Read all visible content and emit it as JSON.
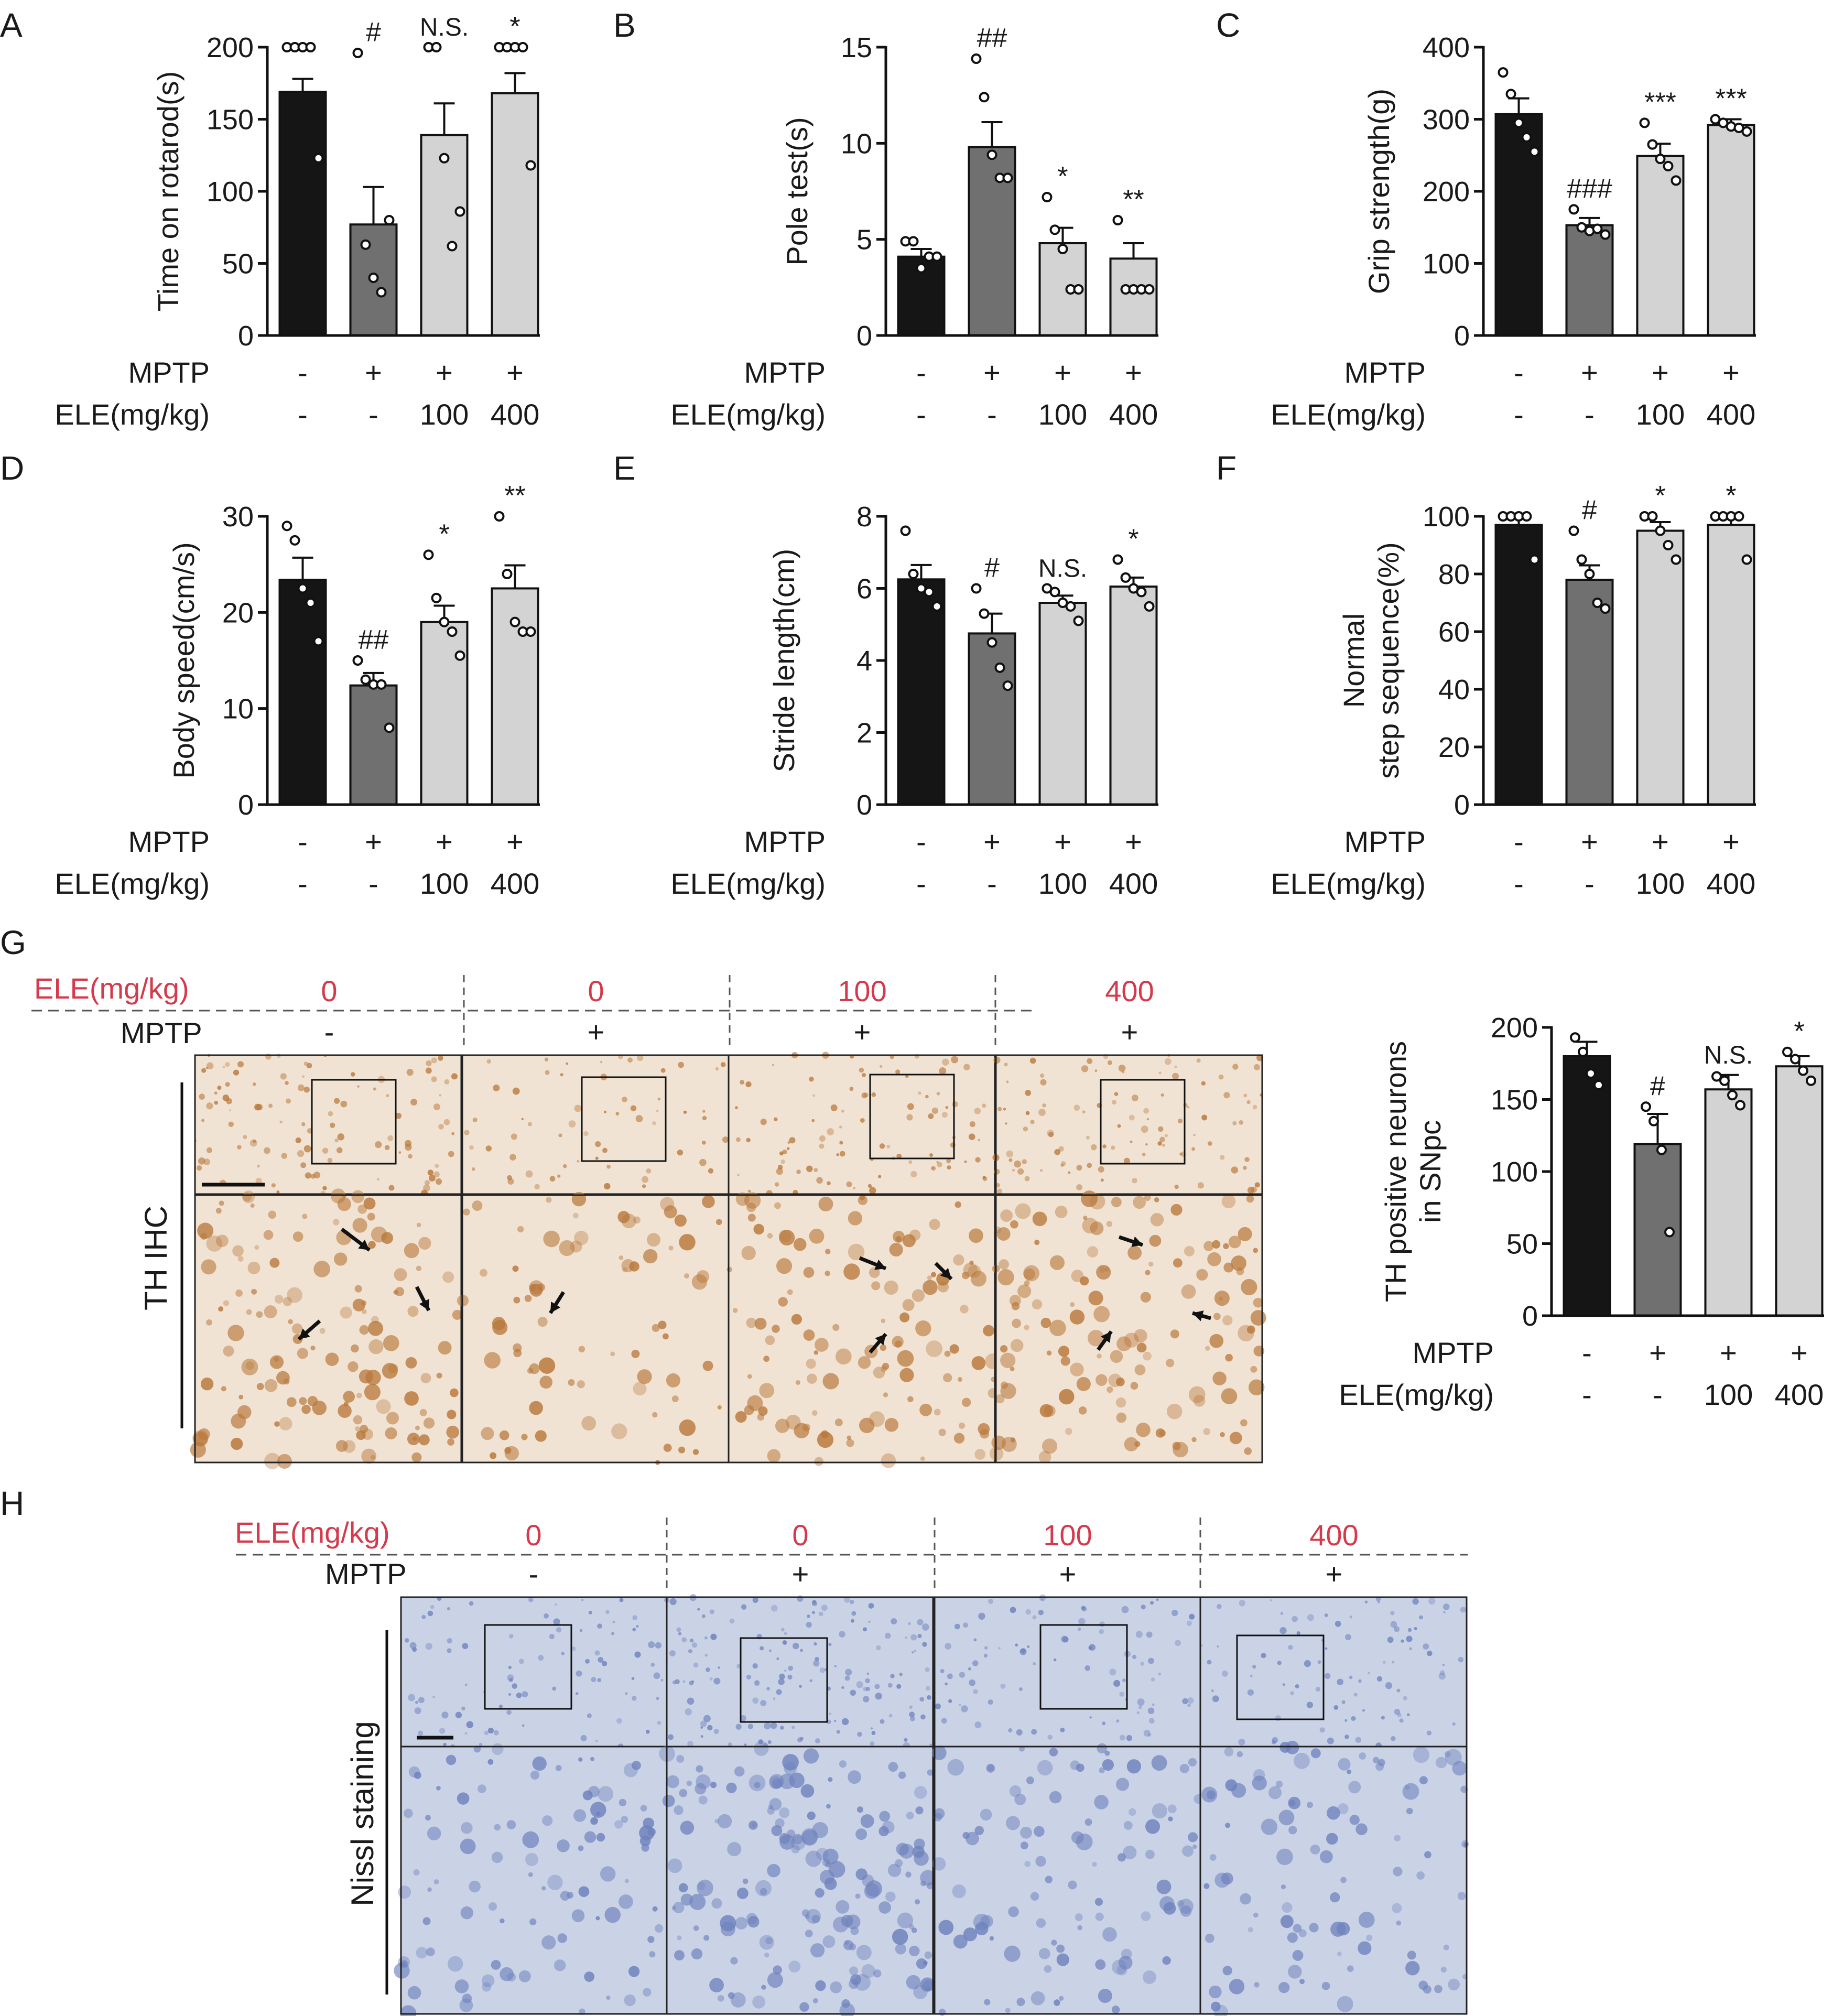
{
  "colors": {
    "control": "#151515",
    "mptp": "#707070",
    "ele100": "#d3d3d3",
    "ele400": "#d3d3d3",
    "treatment_label": "#d43a4b",
    "ihc_tissue": "#f0e3d4",
    "ihc_stain": "#b9783b",
    "nissl_tissue": "#cad3e6",
    "nissl_stain": "#6f82bd"
  },
  "row_labels": {
    "mptp": "MPTP",
    "ele": "ELE(mg/kg)"
  },
  "groups": {
    "mptp": [
      "-",
      "+",
      "+",
      "+"
    ],
    "ele": [
      "-",
      "-",
      "100",
      "400"
    ]
  },
  "chart_data": [
    {
      "panel": "A",
      "type": "bar",
      "ylabel": "Time on rotarod(s)",
      "ylim": [
        0,
        200
      ],
      "yticks": [
        0,
        50,
        100,
        150,
        200
      ],
      "values": [
        169,
        77,
        139,
        168
      ],
      "errors": [
        9,
        26,
        22,
        14
      ],
      "points": [
        [
          200,
          200,
          200,
          200,
          123
        ],
        [
          196,
          63,
          40,
          30,
          80
        ],
        [
          200,
          200,
          123,
          62,
          86
        ],
        [
          200,
          200,
          200,
          200,
          118
        ]
      ],
      "sig": [
        "",
        "#",
        "N.S.",
        "*"
      ]
    },
    {
      "panel": "B",
      "type": "bar",
      "ylabel": "Pole test(s)",
      "ylim": [
        0,
        15
      ],
      "yticks": [
        0,
        5,
        10,
        15
      ],
      "values": [
        4.1,
        9.8,
        4.8,
        4.0
      ],
      "errors": [
        0.4,
        1.3,
        0.8,
        0.8
      ],
      "points": [
        [
          4.9,
          4.9,
          3.5,
          4.1,
          4.1
        ],
        [
          14.4,
          12.4,
          9.4,
          8.2,
          8.2
        ],
        [
          7.2,
          5.5,
          4.5,
          2.4,
          2.4
        ],
        [
          6.0,
          2.4,
          2.4,
          2.4,
          2.4
        ]
      ],
      "sig": [
        "",
        "##",
        "*",
        "**"
      ]
    },
    {
      "panel": "C",
      "type": "bar",
      "ylabel": "Grip strength(g)",
      "ylim": [
        0,
        400
      ],
      "yticks": [
        0,
        100,
        200,
        300,
        400
      ],
      "values": [
        307,
        153,
        249,
        292
      ],
      "errors": [
        22,
        10,
        17,
        8
      ],
      "points": [
        [
          365,
          335,
          295,
          275,
          255
        ],
        [
          175,
          150,
          145,
          148,
          140
        ],
        [
          295,
          265,
          245,
          235,
          215
        ],
        [
          300,
          295,
          290,
          288,
          283
        ]
      ],
      "sig": [
        "",
        "###",
        "***",
        "***"
      ]
    },
    {
      "panel": "D",
      "type": "bar",
      "ylabel": "Body speed(cm/s)",
      "ylim": [
        0,
        30
      ],
      "yticks": [
        0,
        10,
        20,
        30
      ],
      "values": [
        23.4,
        12.4,
        19.0,
        22.5
      ],
      "errors": [
        2.3,
        1.3,
        1.7,
        2.4
      ],
      "points": [
        [
          29.0,
          27.5,
          22.5,
          21.0,
          17.0
        ],
        [
          15.0,
          13.0,
          12.5,
          12.5,
          8.0
        ],
        [
          26.0,
          21.5,
          19.0,
          18.0,
          15.5
        ],
        [
          30.0,
          24.0,
          19.0,
          18.0,
          18.0
        ]
      ],
      "sig": [
        "",
        "##",
        "*",
        "**"
      ]
    },
    {
      "panel": "E",
      "type": "bar",
      "ylabel": "Stride length(cm)",
      "ylim": [
        0,
        8
      ],
      "yticks": [
        0,
        2,
        4,
        6,
        8
      ],
      "values": [
        6.25,
        4.75,
        5.6,
        6.05
      ],
      "errors": [
        0.4,
        0.55,
        0.2,
        0.25
      ],
      "points": [
        [
          7.6,
          6.4,
          6.0,
          5.9,
          5.5
        ],
        [
          6.0,
          5.3,
          4.5,
          3.8,
          3.3
        ],
        [
          6.0,
          5.9,
          5.6,
          5.5,
          5.1
        ],
        [
          6.8,
          6.3,
          6.0,
          5.9,
          5.5
        ]
      ],
      "sig": [
        "",
        "#",
        "N.S.",
        "*"
      ]
    },
    {
      "panel": "F",
      "type": "bar",
      "ylabel": "Normal\nstep sequence(%)",
      "ylim": [
        0,
        100
      ],
      "yticks": [
        0,
        20,
        40,
        60,
        80,
        100
      ],
      "values": [
        97,
        78,
        95,
        97
      ],
      "errors": [
        3,
        5,
        3,
        3
      ],
      "points": [
        [
          100,
          100,
          100,
          100,
          85
        ],
        [
          95,
          85,
          80,
          70,
          68
        ],
        [
          100,
          100,
          95,
          90,
          85
        ],
        [
          100,
          100,
          100,
          100,
          85
        ]
      ],
      "sig": [
        "",
        "#",
        "*",
        "*"
      ]
    },
    {
      "panel": "G",
      "type": "bar",
      "ylabel": "TH positive neurons\nin SNpc",
      "ylim": [
        0,
        200
      ],
      "yticks": [
        0,
        50,
        100,
        150,
        200
      ],
      "values": [
        180,
        119,
        157,
        173
      ],
      "errors": [
        10,
        21,
        10,
        7
      ],
      "points": [
        [
          193,
          183,
          168,
          160
        ],
        [
          145,
          135,
          115,
          58
        ],
        [
          166,
          163,
          153,
          146
        ],
        [
          183,
          178,
          170,
          163
        ]
      ],
      "sig": [
        "",
        "#",
        "N.S.",
        "*"
      ]
    }
  ],
  "panel_labels": {
    "A": "A",
    "B": "B",
    "C": "C",
    "D": "D",
    "E": "E",
    "F": "F",
    "G": "G",
    "H": "H"
  },
  "panel_g": {
    "ele_label": "ELE(mg/kg)",
    "mptp_label": "MPTP",
    "doses": [
      "0",
      "0",
      "100",
      "400"
    ],
    "mptp": [
      "-",
      "+",
      "+",
      "+"
    ],
    "side_label": "TH IHC"
  },
  "panel_h": {
    "ele_label": "ELE(mg/kg)",
    "mptp_label": "MPTP",
    "doses": [
      "0",
      "0",
      "100",
      "400"
    ],
    "mptp": [
      "-",
      "+",
      "+",
      "+"
    ],
    "side_label": "Nissl staining"
  }
}
